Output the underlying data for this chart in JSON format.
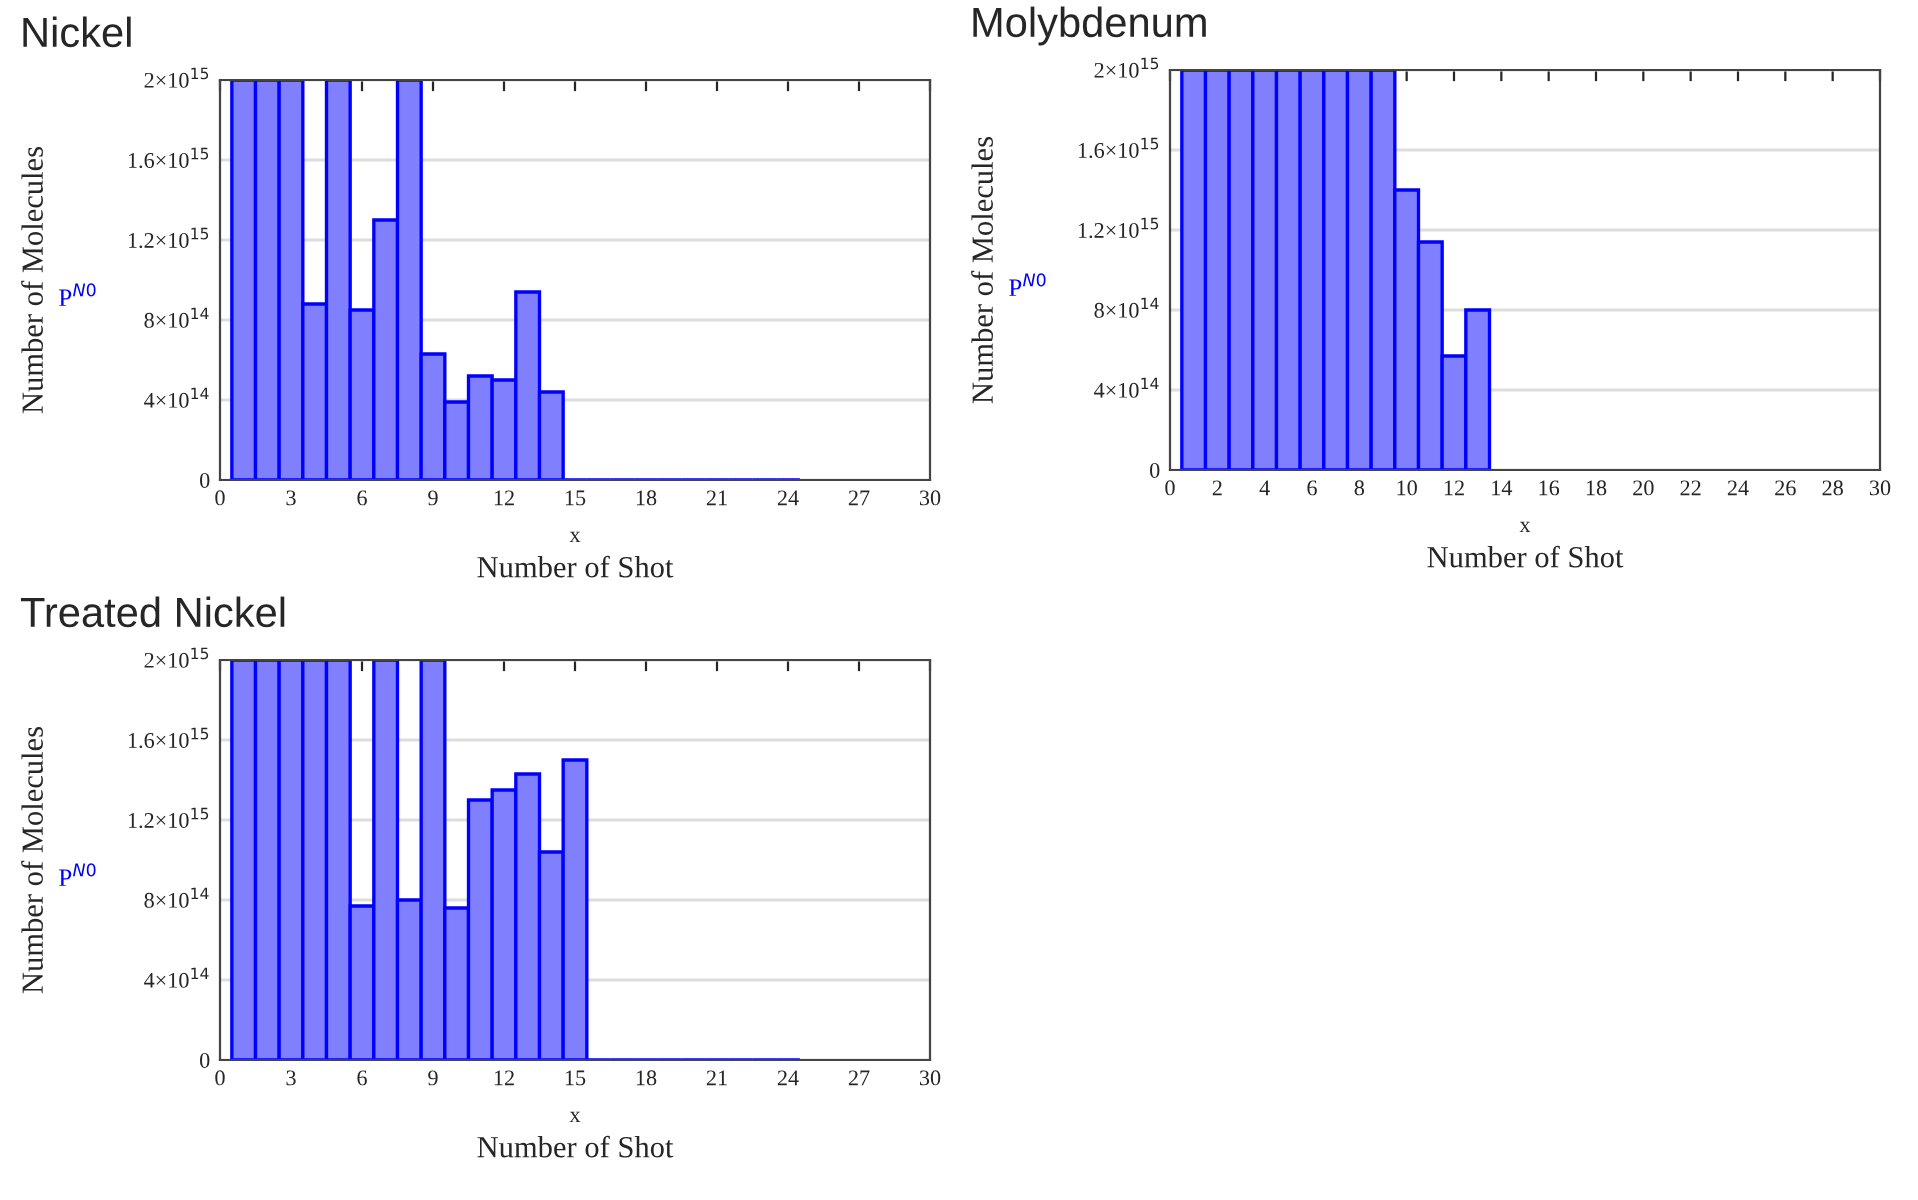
{
  "chart_data": [
    {
      "type": "bar",
      "title": "Nickel",
      "xlabel": "x",
      "ylabel": "Number of Molecules",
      "annotations": [
        "Number of Shot"
      ],
      "grid": "y",
      "x": [
        1,
        2,
        3,
        4,
        5,
        6,
        7,
        8,
        9,
        10,
        11,
        12,
        13,
        14,
        15,
        16,
        17,
        18,
        19,
        20,
        21,
        22,
        23,
        24
      ],
      "series": [
        {
          "name": "P$^{N0}$",
          "color": "#8080ff",
          "values": [
            2000000000000000.0,
            2000000000000000.0,
            2000000000000000.0,
            880000000000000.0,
            2000000000000000.0,
            850000000000000.0,
            1300000000000000.0,
            2000000000000000.0,
            630000000000000.0,
            390000000000000.0,
            520000000000000.0,
            500000000000000.0,
            940000000000000.0,
            440000000000000.0,
            0,
            0,
            0,
            0,
            0,
            0,
            0,
            0,
            0,
            0
          ]
        }
      ],
      "xlim": [
        0,
        30
      ],
      "xticks": [
        0,
        3,
        6,
        9,
        12,
        15,
        18,
        21,
        24,
        27,
        30
      ],
      "ylim": [
        0,
        2000000000000000.0
      ],
      "yticks": [
        {
          "value": 0,
          "label": "0"
        },
        {
          "value": 400000000000000.0,
          "label": "4×10$^{14}$"
        },
        {
          "value": 800000000000000.0,
          "label": "8×10$^{14}$"
        },
        {
          "value": 1200000000000000.0,
          "label": "1.2×10$^{15}$"
        },
        {
          "value": 1600000000000000.0,
          "label": "1.6×10$^{15}$"
        },
        {
          "value": 2000000000000000.0,
          "label": "2×10$^{15}$"
        }
      ]
    },
    {
      "type": "bar",
      "title": "Molybdenum",
      "xlabel": "x",
      "ylabel": "Number of Molecules",
      "annotations": [
        "Number of Shot"
      ],
      "grid": "y",
      "x": [
        1,
        2,
        3,
        4,
        5,
        6,
        7,
        8,
        9,
        10,
        11,
        12,
        13
      ],
      "series": [
        {
          "name": "P$^{N0}$",
          "color": "#8080ff",
          "values": [
            2000000000000000.0,
            2000000000000000.0,
            2000000000000000.0,
            2000000000000000.0,
            2000000000000000.0,
            2000000000000000.0,
            2000000000000000.0,
            2000000000000000.0,
            2000000000000000.0,
            1400000000000000.0,
            1140000000000000.0,
            570000000000000.0,
            800000000000000.0
          ]
        }
      ],
      "xlim": [
        0,
        30
      ],
      "xticks": [
        0,
        2,
        4,
        6,
        8,
        10,
        12,
        14,
        16,
        18,
        20,
        22,
        24,
        26,
        28,
        30
      ],
      "ylim": [
        0,
        2000000000000000.0
      ],
      "yticks": [
        {
          "value": 0,
          "label": "0"
        },
        {
          "value": 400000000000000.0,
          "label": "4×10$^{14}$"
        },
        {
          "value": 800000000000000.0,
          "label": "8×10$^{14}$"
        },
        {
          "value": 1200000000000000.0,
          "label": "1.2×10$^{15}$"
        },
        {
          "value": 1600000000000000.0,
          "label": "1.6×10$^{15}$"
        },
        {
          "value": 2000000000000000.0,
          "label": "2×10$^{15}$"
        }
      ]
    },
    {
      "type": "bar",
      "title": "Treated Nickel",
      "xlabel": "x",
      "ylabel": "Number of Molecules",
      "annotations": [
        "Number of Shot"
      ],
      "grid": "y",
      "x": [
        1,
        2,
        3,
        4,
        5,
        6,
        7,
        8,
        9,
        10,
        11,
        12,
        13,
        14,
        15,
        16,
        17,
        18,
        19,
        20,
        21,
        22,
        23,
        24
      ],
      "series": [
        {
          "name": "P$^{N0}$",
          "color": "#8080ff",
          "values": [
            2000000000000000.0,
            2000000000000000.0,
            2000000000000000.0,
            2000000000000000.0,
            2000000000000000.0,
            770000000000000.0,
            2000000000000000.0,
            800000000000000.0,
            2000000000000000.0,
            760000000000000.0,
            1300000000000000.0,
            1350000000000000.0,
            1430000000000000.0,
            1040000000000000.0,
            1500000000000000.0,
            0,
            0,
            0,
            0,
            0,
            0,
            0,
            0,
            0
          ]
        }
      ],
      "xlim": [
        0,
        30
      ],
      "xticks": [
        0,
        3,
        6,
        9,
        12,
        15,
        18,
        21,
        24,
        27,
        30
      ],
      "ylim": [
        0,
        2000000000000000.0
      ],
      "yticks": [
        {
          "value": 0,
          "label": "0"
        },
        {
          "value": 400000000000000.0,
          "label": "4×10$^{14}$"
        },
        {
          "value": 800000000000000.0,
          "label": "8×10$^{14}$"
        },
        {
          "value": 1200000000000000.0,
          "label": "1.2×10$^{15}$"
        },
        {
          "value": 1600000000000000.0,
          "label": "1.6×10$^{15}$"
        },
        {
          "value": 2000000000000000.0,
          "label": "2×10$^{15}$"
        }
      ]
    }
  ]
}
